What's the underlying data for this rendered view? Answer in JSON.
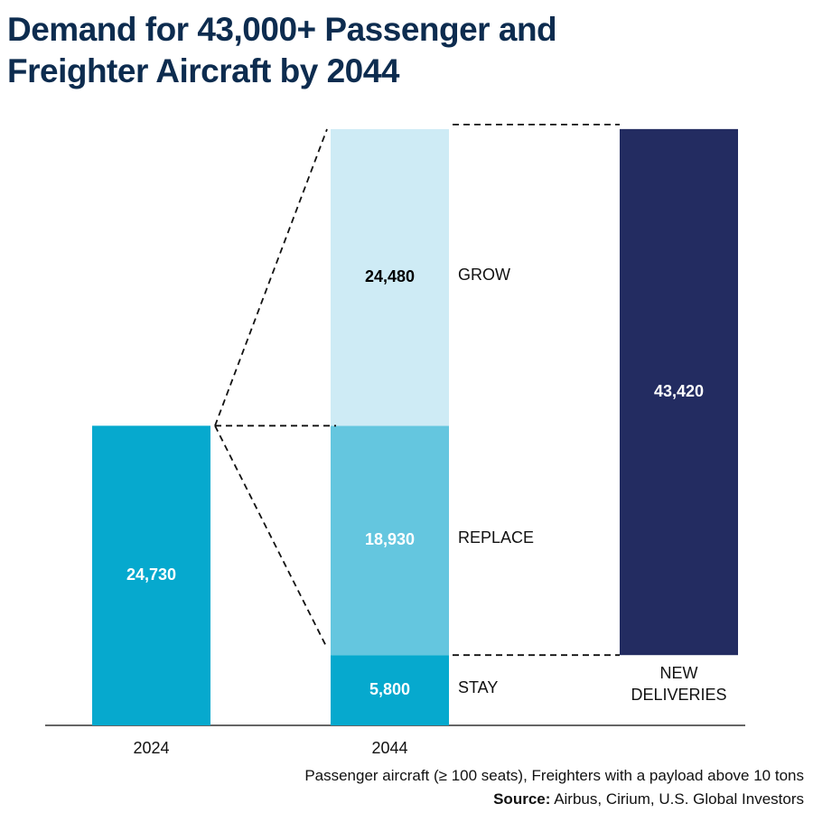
{
  "chart_data": {
    "type": "waterfall",
    "title": "Demand for 43,000+ Passenger and Freighter Aircraft by 2044",
    "bars": [
      {
        "category": "2024",
        "value": 24730,
        "value_label": "24,730",
        "color": "#06a9ce",
        "label_color": "#ffffff"
      },
      {
        "category": "2044",
        "segments": [
          {
            "name": "STAY",
            "value": 5800,
            "value_label": "5,800",
            "color": "#06a9ce",
            "label_color": "#ffffff"
          },
          {
            "name": "REPLACE",
            "value": 18930,
            "value_label": "18,930",
            "color": "#64c6df",
            "label_color": "#ffffff"
          },
          {
            "name": "GROW",
            "value": 24480,
            "value_label": "24,480",
            "color": "#ceebf5",
            "label_color": "#000000"
          }
        ]
      },
      {
        "category": "NEW DELIVERIES",
        "value": 43420,
        "value_label": "43,420",
        "color": "#232c61",
        "label_color": "#ffffff"
      }
    ],
    "note": "Passenger aircraft (≥ 100 seats), Freighters with a payload above 10 tons",
    "source_label": "Source:",
    "source": "Airbus, Cirium, U.S. Global Investors"
  }
}
